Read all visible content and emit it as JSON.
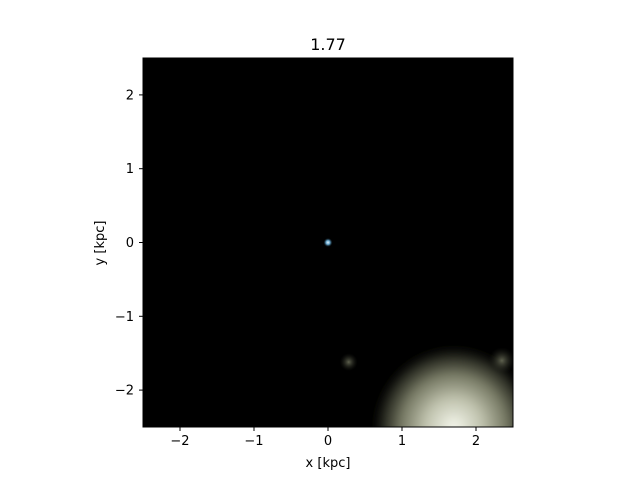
{
  "chart_data": {
    "type": "heatmap",
    "title": "1.77",
    "xlabel": "x [kpc]",
    "ylabel": "y [kpc]",
    "xlim": [
      -2.5,
      2.5
    ],
    "ylim": [
      -2.5,
      2.5
    ],
    "xticks": [
      -2,
      -1,
      0,
      1,
      2
    ],
    "yticks": [
      -2,
      -1,
      0,
      1,
      2
    ],
    "xtick_labels": [
      "−2",
      "−1",
      "0",
      "1",
      "2"
    ],
    "ytick_labels": [
      "−2",
      "−1",
      "0",
      "1",
      "2"
    ],
    "grid": false,
    "background_color": "#000000",
    "features": [
      {
        "kind": "point-source",
        "x": 0.0,
        "y": 0.0,
        "radius": 0.06,
        "color": "#8fd3ff"
      },
      {
        "kind": "faint-cloud",
        "x": 0.28,
        "y": -1.62,
        "radius": 0.12,
        "color": "#4a4d3a"
      },
      {
        "kind": "bright-cloud",
        "x": 1.6,
        "y": -2.3,
        "radius": 1.0,
        "color": "#e4e8d8"
      },
      {
        "kind": "faint-cloud",
        "x": 2.35,
        "y": -1.6,
        "radius": 0.18,
        "color": "#4e5140"
      }
    ]
  }
}
